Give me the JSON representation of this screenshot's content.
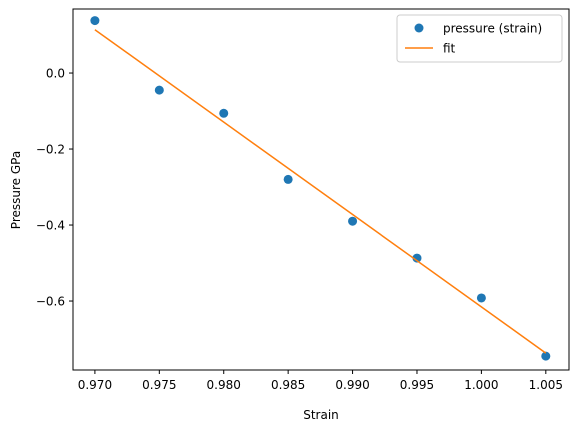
{
  "chart_data": {
    "type": "scatter",
    "xlabel": "Strain",
    "ylabel": "Pressure GPa",
    "xlim": [
      0.9683,
      1.0068
    ],
    "ylim": [
      -0.7815,
      0.1685
    ],
    "xticks": [
      0.97,
      0.975,
      0.98,
      0.985,
      0.99,
      0.995,
      1.0,
      1.005
    ],
    "xtick_labels": [
      "0.970",
      "0.975",
      "0.980",
      "0.985",
      "0.990",
      "0.995",
      "1.000",
      "1.005"
    ],
    "yticks": [
      0.0,
      -0.2,
      -0.4,
      -0.6
    ],
    "ytick_labels": [
      "0.0",
      "−0.2",
      "−0.4",
      "−0.6"
    ],
    "grid": false,
    "legend_position": "top-right",
    "series": [
      {
        "name": "pressure (strain)",
        "kind": "scatter",
        "color": "#1f77b4",
        "x": [
          0.97,
          0.975,
          0.98,
          0.985,
          0.99,
          0.995,
          1.0,
          1.005
        ],
        "y": [
          0.138,
          -0.045,
          -0.106,
          -0.28,
          -0.39,
          -0.487,
          -0.592,
          -0.745
        ]
      },
      {
        "name": "fit",
        "kind": "line",
        "color": "#ff7f0e",
        "x": [
          0.97,
          1.005
        ],
        "y": [
          0.114,
          -0.737
        ]
      }
    ]
  }
}
